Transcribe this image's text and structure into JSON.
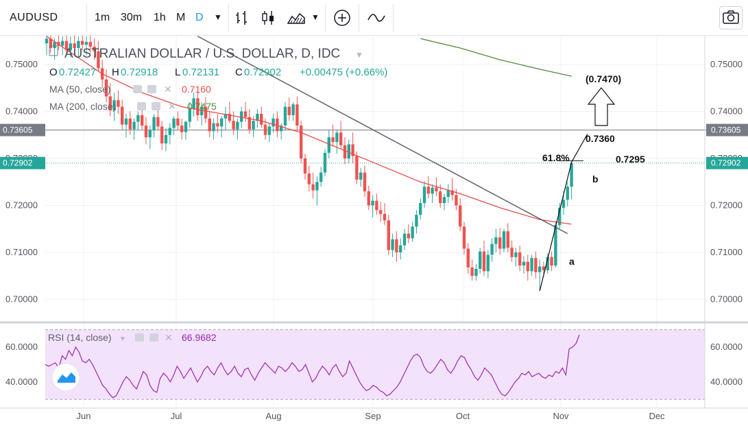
{
  "toolbar": {
    "symbol": "AUDUSD",
    "intervals": [
      "1m",
      "30m",
      "1h",
      "M",
      "D"
    ],
    "active_interval": "D",
    "icons": [
      "chevron-down-icon",
      "bar-chart-icon",
      "candlestick-icon",
      "area-chart-icon",
      "chevron-down-icon",
      "add-indicator-icon",
      "line-compare-icon",
      "camera-icon"
    ]
  },
  "legend": {
    "title": "AUSTRALIAN DOLLAR / U.S. DOLLAR, D, IDC",
    "o_label": "O",
    "o_value": "0.72427",
    "h_label": "H",
    "h_value": "0.72918",
    "l_label": "L",
    "l_value": "0.72131",
    "c_label": "C",
    "c_value": "0.72902",
    "change": "+0.00475 (+0.66%)",
    "ma50_label": "MA (50, close)",
    "ma50_value": "0.7160",
    "ma200_label": "MA (200, close)",
    "ma200_value": "0.7475"
  },
  "rsi_legend": {
    "label": "RSI (14, close)",
    "value": "66.9682"
  },
  "annotations": {
    "target": "(0.7470)",
    "level_7360": "0.7360",
    "fib": "61.8%",
    "level_7295": "0.7295",
    "wave_a": "a",
    "wave_b": "b"
  },
  "colors": {
    "up": "#26a69a",
    "down": "#ef5350",
    "ma50": "#e94a4a",
    "ma200": "#4f8a3a",
    "rsi": "#9c27b0",
    "rsi_band": "#f3e2fb",
    "price_badge": "#26a69a",
    "grid": "#eef0f3"
  },
  "chart_data": [
    {
      "type": "candlestick",
      "title": "AUSTRALIAN DOLLAR / U.S. DOLLAR, D, IDC",
      "y_ticks": [
        "0.75000",
        "0.74000",
        "0.73000",
        "0.72000",
        "0.71000",
        "0.70000"
      ],
      "ylim": [
        0.6975,
        0.7565
      ],
      "x_ticks": [
        "Jun",
        "Jul",
        "Aug",
        "Sep",
        "Oct",
        "Nov",
        "Dec"
      ],
      "horizontal_level": {
        "value": 0.73605,
        "label": "0.73605"
      },
      "last_price": {
        "value": 0.72902,
        "label": "0.72902"
      },
      "grid": true,
      "candles": [
        [
          0.7545,
          0.7565,
          0.752,
          0.7555
        ],
        [
          0.7555,
          0.7565,
          0.7525,
          0.7535
        ],
        [
          0.7535,
          0.7555,
          0.751,
          0.7548
        ],
        [
          0.7548,
          0.7565,
          0.753,
          0.754
        ],
        [
          0.754,
          0.756,
          0.752,
          0.755
        ],
        [
          0.755,
          0.7565,
          0.7525,
          0.753
        ],
        [
          0.753,
          0.756,
          0.7515,
          0.7545
        ],
        [
          0.7545,
          0.7565,
          0.752,
          0.7535
        ],
        [
          0.7535,
          0.756,
          0.7515,
          0.755
        ],
        [
          0.755,
          0.7565,
          0.753,
          0.7542
        ],
        [
          0.7542,
          0.756,
          0.752,
          0.7548
        ],
        [
          0.7548,
          0.7565,
          0.7525,
          0.7538
        ],
        [
          0.7538,
          0.7555,
          0.751,
          0.7528
        ],
        [
          0.7528,
          0.755,
          0.7485,
          0.7492
        ],
        [
          0.7492,
          0.751,
          0.745,
          0.7468
        ],
        [
          0.7468,
          0.749,
          0.742,
          0.7432
        ],
        [
          0.7432,
          0.746,
          0.739,
          0.7402
        ],
        [
          0.7402,
          0.744,
          0.738,
          0.7424
        ],
        [
          0.7424,
          0.7445,
          0.7395,
          0.741
        ],
        [
          0.741,
          0.7425,
          0.736,
          0.7372
        ],
        [
          0.7372,
          0.7395,
          0.7345,
          0.7385
        ],
        [
          0.7385,
          0.74,
          0.735,
          0.7362
        ],
        [
          0.7362,
          0.7385,
          0.734,
          0.7378
        ],
        [
          0.7378,
          0.74,
          0.736,
          0.7392
        ],
        [
          0.7392,
          0.741,
          0.7362,
          0.737
        ],
        [
          0.737,
          0.7388,
          0.733,
          0.7345
        ],
        [
          0.7345,
          0.737,
          0.732,
          0.736
        ],
        [
          0.736,
          0.7395,
          0.7345,
          0.7388
        ],
        [
          0.7388,
          0.7405,
          0.736,
          0.7368
        ],
        [
          0.7368,
          0.738,
          0.7318,
          0.7332
        ],
        [
          0.7332,
          0.7365,
          0.7315,
          0.735
        ],
        [
          0.735,
          0.7375,
          0.733,
          0.7365
        ],
        [
          0.7365,
          0.739,
          0.735,
          0.7385
        ],
        [
          0.7385,
          0.74,
          0.736,
          0.737
        ],
        [
          0.737,
          0.7385,
          0.734,
          0.7356
        ],
        [
          0.7356,
          0.738,
          0.734,
          0.7378
        ],
        [
          0.7378,
          0.742,
          0.7365,
          0.7405
        ],
        [
          0.7405,
          0.744,
          0.739,
          0.7428
        ],
        [
          0.7428,
          0.744,
          0.738,
          0.7392
        ],
        [
          0.7392,
          0.742,
          0.737,
          0.741
        ],
        [
          0.741,
          0.743,
          0.7375,
          0.7385
        ],
        [
          0.7385,
          0.74,
          0.7345,
          0.7358
        ],
        [
          0.7358,
          0.7385,
          0.734,
          0.7375
        ],
        [
          0.7375,
          0.7395,
          0.7355,
          0.7368
        ],
        [
          0.7368,
          0.739,
          0.7345,
          0.7385
        ],
        [
          0.7385,
          0.741,
          0.736,
          0.7395
        ],
        [
          0.7395,
          0.742,
          0.7375,
          0.738
        ],
        [
          0.738,
          0.74,
          0.735,
          0.7362
        ],
        [
          0.7362,
          0.7385,
          0.734,
          0.7378
        ],
        [
          0.7378,
          0.741,
          0.7365,
          0.74
        ],
        [
          0.74,
          0.742,
          0.7378,
          0.7388
        ],
        [
          0.7388,
          0.7405,
          0.7352,
          0.7362
        ],
        [
          0.7362,
          0.739,
          0.7345,
          0.738
        ],
        [
          0.738,
          0.7405,
          0.7365,
          0.7395
        ],
        [
          0.7395,
          0.741,
          0.7365,
          0.7372
        ],
        [
          0.7372,
          0.7385,
          0.734,
          0.735
        ],
        [
          0.735,
          0.7375,
          0.7335,
          0.7368
        ],
        [
          0.7368,
          0.7395,
          0.7355,
          0.7385
        ],
        [
          0.7385,
          0.74,
          0.7345,
          0.7358
        ],
        [
          0.7358,
          0.7375,
          0.734,
          0.737
        ],
        [
          0.737,
          0.742,
          0.736,
          0.741
        ],
        [
          0.741,
          0.743,
          0.738,
          0.7392
        ],
        [
          0.7392,
          0.742,
          0.738,
          0.7415
        ],
        [
          0.7415,
          0.7432,
          0.736,
          0.737
        ],
        [
          0.737,
          0.738,
          0.729,
          0.73
        ],
        [
          0.73,
          0.731,
          0.7255,
          0.7268
        ],
        [
          0.7268,
          0.7285,
          0.723,
          0.7245
        ],
        [
          0.7245,
          0.727,
          0.7215,
          0.7232
        ],
        [
          0.7232,
          0.7262,
          0.72,
          0.725
        ],
        [
          0.725,
          0.7282,
          0.724,
          0.727
        ],
        [
          0.727,
          0.732,
          0.7262,
          0.7312
        ],
        [
          0.7312,
          0.736,
          0.73,
          0.7345
        ],
        [
          0.7345,
          0.7372,
          0.7325,
          0.7335
        ],
        [
          0.7335,
          0.736,
          0.731,
          0.7355
        ],
        [
          0.7355,
          0.738,
          0.732,
          0.7328
        ],
        [
          0.7328,
          0.7345,
          0.7288,
          0.73
        ],
        [
          0.73,
          0.734,
          0.729,
          0.733
        ],
        [
          0.733,
          0.7355,
          0.729,
          0.7305
        ],
        [
          0.7305,
          0.7315,
          0.7245,
          0.7255
        ],
        [
          0.7255,
          0.728,
          0.724,
          0.727
        ],
        [
          0.727,
          0.7285,
          0.7218,
          0.723
        ],
        [
          0.723,
          0.7242,
          0.719,
          0.72
        ],
        [
          0.72,
          0.7222,
          0.7175,
          0.721
        ],
        [
          0.721,
          0.7225,
          0.718,
          0.719
        ],
        [
          0.719,
          0.7208,
          0.7165,
          0.7182
        ],
        [
          0.7182,
          0.7205,
          0.7158,
          0.7168
        ],
        [
          0.7168,
          0.718,
          0.7095,
          0.7105
        ],
        [
          0.7105,
          0.714,
          0.709,
          0.7128
        ],
        [
          0.7128,
          0.7145,
          0.708,
          0.71
        ],
        [
          0.71,
          0.713,
          0.7085,
          0.7115
        ],
        [
          0.7115,
          0.715,
          0.7105,
          0.714
        ],
        [
          0.714,
          0.716,
          0.712,
          0.713
        ],
        [
          0.713,
          0.7165,
          0.7122,
          0.7155
        ],
        [
          0.7155,
          0.719,
          0.714,
          0.718
        ],
        [
          0.718,
          0.7215,
          0.717,
          0.7205
        ],
        [
          0.7205,
          0.7252,
          0.7195,
          0.724
        ],
        [
          0.724,
          0.7262,
          0.7215,
          0.7225
        ],
        [
          0.7225,
          0.7245,
          0.7205,
          0.7238
        ],
        [
          0.7238,
          0.726,
          0.722,
          0.723
        ],
        [
          0.723,
          0.7245,
          0.7195,
          0.7205
        ],
        [
          0.7205,
          0.7225,
          0.719,
          0.7218
        ],
        [
          0.7218,
          0.7245,
          0.7205,
          0.7232
        ],
        [
          0.7232,
          0.7258,
          0.721,
          0.7222
        ],
        [
          0.7222,
          0.7235,
          0.719,
          0.72
        ],
        [
          0.72,
          0.7215,
          0.7145,
          0.7155
        ],
        [
          0.7155,
          0.7165,
          0.7095,
          0.7108
        ],
        [
          0.7108,
          0.712,
          0.7055,
          0.7068
        ],
        [
          0.7068,
          0.7085,
          0.704,
          0.705
        ],
        [
          0.705,
          0.7075,
          0.704,
          0.7065
        ],
        [
          0.7065,
          0.711,
          0.7055,
          0.7102
        ],
        [
          0.7102,
          0.7125,
          0.705,
          0.706
        ],
        [
          0.706,
          0.7105,
          0.7045,
          0.7095
        ],
        [
          0.7095,
          0.713,
          0.708,
          0.7118
        ],
        [
          0.7118,
          0.715,
          0.71,
          0.7132
        ],
        [
          0.7132,
          0.7152,
          0.7095,
          0.7108
        ],
        [
          0.7108,
          0.715,
          0.71,
          0.7145
        ],
        [
          0.7145,
          0.7162,
          0.71,
          0.711
        ],
        [
          0.711,
          0.7125,
          0.708,
          0.709
        ],
        [
          0.709,
          0.711,
          0.707,
          0.71
        ],
        [
          0.71,
          0.7115,
          0.706,
          0.7072
        ],
        [
          0.7072,
          0.7092,
          0.7055,
          0.708
        ],
        [
          0.708,
          0.7095,
          0.704,
          0.706
        ],
        [
          0.706,
          0.7095,
          0.705,
          0.7088
        ],
        [
          0.7088,
          0.7102,
          0.7045,
          0.7058
        ],
        [
          0.7058,
          0.7085,
          0.702,
          0.707
        ],
        [
          0.707,
          0.708,
          0.7048,
          0.7062
        ],
        [
          0.7062,
          0.7098,
          0.7055,
          0.709
        ],
        [
          0.709,
          0.7102,
          0.706,
          0.7072
        ],
        [
          0.7072,
          0.7165,
          0.7068,
          0.7158
        ],
        [
          0.7158,
          0.7205,
          0.715,
          0.7195
        ],
        [
          0.7195,
          0.723,
          0.718,
          0.7212
        ],
        [
          0.7212,
          0.725,
          0.7198,
          0.724
        ],
        [
          0.724,
          0.7292,
          0.7213,
          0.729
        ]
      ],
      "ma50": [
        [
          0,
          0.756
        ],
        [
          14,
          0.748
        ],
        [
          24,
          0.744
        ],
        [
          34,
          0.741
        ],
        [
          44,
          0.7395
        ],
        [
          54,
          0.738
        ],
        [
          64,
          0.7355
        ],
        [
          74,
          0.732
        ],
        [
          84,
          0.7285
        ],
        [
          94,
          0.725
        ],
        [
          104,
          0.7225
        ],
        [
          114,
          0.7195
        ],
        [
          124,
          0.717
        ],
        [
          132,
          0.716
        ]
      ],
      "ma200": [
        [
          94,
          0.7555
        ],
        [
          104,
          0.7535
        ],
        [
          114,
          0.751
        ],
        [
          124,
          0.749
        ],
        [
          132,
          0.7475
        ]
      ],
      "drawings": {
        "trendline": [
          [
            38,
            0.756
          ],
          [
            131,
            0.714
          ]
        ],
        "wave_line": [
          [
            124,
            0.7018
          ],
          [
            132,
            0.7292
          ],
          [
            136,
            0.7352
          ]
        ],
        "fib_line": [
          [
            129,
            0.7295
          ],
          [
            135,
            0.7295
          ]
        ]
      }
    },
    {
      "type": "line",
      "title": "RSI (14, close)",
      "y_ticks": [
        "60.0000",
        "40.0000"
      ],
      "ylim": [
        29,
        72
      ],
      "band": [
        30,
        70
      ],
      "values": [
        50,
        49,
        50,
        51,
        48,
        55,
        53,
        58,
        55,
        60,
        57,
        52,
        51,
        53,
        50,
        46,
        42,
        38,
        36,
        33,
        31,
        32,
        36,
        40,
        43,
        41,
        38,
        36,
        41,
        46,
        44,
        38,
        35,
        34,
        42,
        45,
        43,
        40,
        44,
        49,
        46,
        42,
        45,
        48,
        44,
        40,
        43,
        47,
        49,
        46,
        44,
        48,
        51,
        47,
        44,
        46,
        49,
        45,
        43,
        47,
        48,
        44,
        41,
        45,
        48,
        51,
        49,
        47,
        45,
        49,
        48,
        46,
        48,
        51,
        49,
        46,
        47,
        50,
        45,
        40,
        42,
        46,
        49,
        47,
        44,
        48,
        50,
        46,
        43,
        45,
        52,
        48,
        44,
        40,
        37,
        35,
        36,
        38,
        37,
        35,
        34,
        32,
        33,
        35,
        37,
        40,
        44,
        48,
        52,
        55,
        56,
        54,
        49,
        46,
        45,
        47,
        50,
        53,
        51,
        47,
        45,
        48,
        52,
        55,
        54,
        50,
        47,
        43,
        41,
        44,
        48,
        46,
        44,
        40,
        36,
        33,
        32,
        34,
        37,
        40,
        42,
        45,
        44,
        46,
        43,
        44,
        45,
        43,
        42,
        44,
        43,
        46,
        45,
        48,
        44,
        59,
        60,
        62,
        67
      ]
    }
  ]
}
